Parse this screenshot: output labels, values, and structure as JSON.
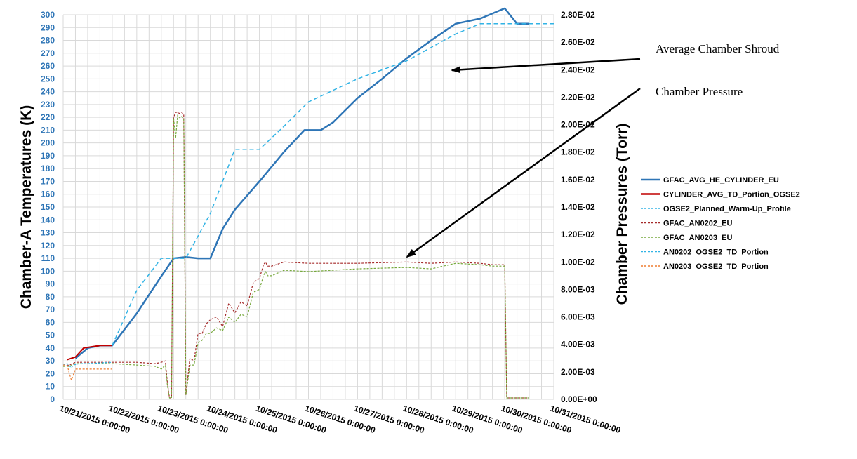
{
  "chart_data": {
    "type": "line",
    "y_left_label": "Chamber-A Temperatures (K)",
    "y_right_label": "Chamber Pressures (Torr)",
    "y_left_range": [
      0,
      300
    ],
    "y_left_ticks": [
      0,
      10,
      20,
      30,
      40,
      50,
      60,
      70,
      80,
      90,
      100,
      110,
      120,
      130,
      140,
      150,
      160,
      170,
      180,
      190,
      200,
      210,
      220,
      230,
      240,
      250,
      260,
      270,
      280,
      290,
      300
    ],
    "y_right_range": [
      0,
      0.028
    ],
    "y_right_ticks": [
      "0.00E+00",
      "2.00E-03",
      "4.00E-03",
      "6.00E-03",
      "8.00E-03",
      "1.00E-02",
      "1.20E-02",
      "1.40E-02",
      "1.60E-02",
      "1.80E-02",
      "2.00E-02",
      "2.20E-02",
      "2.40E-02",
      "2.60E-02",
      "2.80E-02"
    ],
    "x_ticks": [
      "10/21/2015 0:00:00",
      "10/22/2015 0:00:00",
      "10/23/2015 0:00:00",
      "10/24/2015 0:00:00",
      "10/25/2015 0:00:00",
      "10/26/2015 0:00:00",
      "10/27/2015 0:00:00",
      "10/28/2015 0:00:00",
      "10/29/2015 0:00:00",
      "10/30/2015 0:00:00",
      "10/31/2015 0:00:00"
    ],
    "grid": true,
    "legend_position": "right",
    "annotations": [
      {
        "text": "Average Chamber Shroud",
        "points_to": "GFAC_AVG_HE_CYLINDER_EU"
      },
      {
        "text": "Chamber Pressure",
        "points_to": "GFAC_AN0202_EU"
      }
    ],
    "series": [
      {
        "name": "GFAC_AVG_HE_CYLINDER_EU",
        "axis": "left",
        "color": "#2e75b6",
        "style": "solid",
        "width": 2.5,
        "x": [
          "10/21/2015 6:00",
          "10/21/2015 12:00",
          "10/21/2015 18:00",
          "10/22/2015 0:00",
          "10/22/2015 12:00",
          "10/23/2015 0:00",
          "10/23/2015 6:00",
          "10/23/2015 12:00",
          "10/23/2015 18:00",
          "10/24/2015 0:00",
          "10/24/2015 6:00",
          "10/24/2015 12:00",
          "10/25/2015 0:00",
          "10/25/2015 12:00",
          "10/25/2015 22:00",
          "10/26/2015 6:00",
          "10/26/2015 12:00",
          "10/27/2015 0:00",
          "10/27/2015 12:00",
          "10/28/2015 0:00",
          "10/28/2015 12:00",
          "10/29/2015 0:00",
          "10/29/2015 12:00",
          "10/30/2015 0:00",
          "10/30/2015 6:00",
          "10/30/2015 12:00"
        ],
        "y": [
          32,
          40,
          42,
          42,
          67,
          96,
          110,
          111,
          110,
          110,
          133,
          148,
          170,
          193,
          210,
          210,
          216,
          235,
          250,
          266,
          280,
          293,
          297,
          305,
          293,
          293
        ]
      },
      {
        "name": "CYLINDER_AVG_TD_Portion_OGSE2",
        "axis": "left",
        "color": "#c00000",
        "style": "solid",
        "width": 2,
        "x": [
          "10/21/2015 2:00",
          "10/21/2015 6:00",
          "10/21/2015 10:00",
          "10/21/2015 18:00",
          "10/22/2015 0:00"
        ],
        "y": [
          31,
          33,
          40,
          42,
          42
        ]
      },
      {
        "name": "OGSE2_Planned_Warm-Up_Profile",
        "axis": "left",
        "color": "#31b3e5",
        "style": "dashed",
        "width": 1.5,
        "x": [
          "10/22/2015 0:00",
          "10/22/2015 12:00",
          "10/23/2015 0:00",
          "10/23/2015 12:00",
          "10/24/2015 0:00",
          "10/24/2015 12:00",
          "10/25/2015 0:00",
          "10/25/2015 12:00",
          "10/26/2015 0:00",
          "10/27/2015 0:00",
          "10/28/2015 0:00",
          "10/29/2015 0:00",
          "10/29/2015 12:00",
          "10/30/2015 0:00",
          "10/31/2015 0:00"
        ],
        "y": [
          42,
          85,
          110,
          110,
          145,
          195,
          195,
          213,
          232,
          250,
          264,
          285,
          293,
          293,
          293
        ]
      },
      {
        "name": "GFAC_AN0202_EU",
        "axis": "right",
        "color": "#a52a2a",
        "style": "dashed",
        "width": 1.2,
        "x": [
          "10/21/2015 0:00",
          "10/21/2015 3:00",
          "10/21/2015 6:00",
          "10/21/2015 12:00",
          "10/22/2015 0:00",
          "10/22/2015 12:00",
          "10/22/2015 21:00",
          "10/23/2015 0:00",
          "10/23/2015 2:00",
          "10/23/2015 3:00",
          "10/23/2015 4:00",
          "10/23/2015 5:00",
          "10/23/2015 6:00",
          "10/23/2015 7:00",
          "10/23/2015 8:00",
          "10/23/2015 9:00",
          "10/23/2015 10:00",
          "10/23/2015 11:00",
          "10/23/2015 12:00",
          "10/23/2015 14:00",
          "10/23/2015 16:00",
          "10/23/2015 18:00",
          "10/23/2015 20:00",
          "10/23/2015 22:00",
          "10/24/2015 0:00",
          "10/24/2015 3:00",
          "10/24/2015 6:00",
          "10/24/2015 9:00",
          "10/24/2015 12:00",
          "10/24/2015 15:00",
          "10/24/2015 18:00",
          "10/24/2015 21:00",
          "10/25/2015 0:00",
          "10/25/2015 2:00",
          "10/25/2015 3:00",
          "10/25/2015 4:00",
          "10/25/2015 6:00",
          "10/25/2015 12:00",
          "10/26/2015 0:00",
          "10/27/2015 0:00",
          "10/28/2015 0:00",
          "10/28/2015 12:00",
          "10/29/2015 0:00",
          "10/29/2015 12:00",
          "10/29/2015 18:00",
          "10/30/2015 0:00",
          "10/30/2015 1:00",
          "10/30/2015 6:00",
          "10/30/2015 12:00"
        ],
        "y": [
          0.0024,
          0.0025,
          0.0027,
          0.0027,
          0.0027,
          0.0027,
          0.0026,
          0.0027,
          0.0028,
          0.0012,
          0.0001,
          0.0001,
          0.0205,
          0.0209,
          0.0209,
          0.0208,
          0.0209,
          0.0207,
          0.0003,
          0.003,
          0.0028,
          0.0048,
          0.0048,
          0.0055,
          0.0058,
          0.006,
          0.0053,
          0.007,
          0.0063,
          0.0071,
          0.0068,
          0.0085,
          0.0088,
          0.0098,
          0.01,
          0.0097,
          0.0097,
          0.01,
          0.0099,
          0.0099,
          0.01,
          0.0099,
          0.01,
          0.0099,
          0.0098,
          0.0098,
          0.0001,
          0.0001,
          0.0001
        ]
      },
      {
        "name": "GFAC_AN0203_EU",
        "axis": "right",
        "color": "#77a93d",
        "style": "dashed",
        "width": 1.2,
        "x": [
          "10/21/2015 0:00",
          "10/21/2015 3:00",
          "10/21/2015 6:00",
          "10/21/2015 12:00",
          "10/22/2015 0:00",
          "10/22/2015 12:00",
          "10/22/2015 21:00",
          "10/23/2015 0:00",
          "10/23/2015 2:00",
          "10/23/2015 3:00",
          "10/23/2015 4:00",
          "10/23/2015 5:00",
          "10/23/2015 6:00",
          "10/23/2015 7:00",
          "10/23/2015 8:00",
          "10/23/2015 9:00",
          "10/23/2015 10:00",
          "10/23/2015 11:00",
          "10/23/2015 12:00",
          "10/23/2015 14:00",
          "10/23/2015 16:00",
          "10/23/2015 18:00",
          "10/23/2015 20:00",
          "10/23/2015 22:00",
          "10/24/2015 0:00",
          "10/24/2015 3:00",
          "10/24/2015 6:00",
          "10/24/2015 9:00",
          "10/24/2015 12:00",
          "10/24/2015 15:00",
          "10/24/2015 18:00",
          "10/24/2015 21:00",
          "10/25/2015 0:00",
          "10/25/2015 2:00",
          "10/25/2015 3:00",
          "10/25/2015 4:00",
          "10/25/2015 6:00",
          "10/25/2015 12:00",
          "10/26/2015 0:00",
          "10/27/2015 0:00",
          "10/28/2015 0:00",
          "10/28/2015 12:00",
          "10/29/2015 0:00",
          "10/29/2015 12:00",
          "10/29/2015 18:00",
          "10/30/2015 0:00",
          "10/30/2015 1:00",
          "10/30/2015 6:00",
          "10/30/2015 12:00"
        ],
        "y": [
          0.0024,
          0.0024,
          0.0026,
          0.0026,
          0.0026,
          0.0025,
          0.0024,
          0.0022,
          0.0025,
          0.001,
          0.0001,
          0.0001,
          0.0205,
          0.019,
          0.0207,
          0.0205,
          0.0206,
          0.0204,
          0.0003,
          0.0025,
          0.0025,
          0.0041,
          0.0043,
          0.0048,
          0.0048,
          0.0052,
          0.005,
          0.006,
          0.0056,
          0.0062,
          0.006,
          0.0078,
          0.008,
          0.009,
          0.0093,
          0.009,
          0.009,
          0.0094,
          0.0093,
          0.0095,
          0.0096,
          0.0095,
          0.0099,
          0.0098,
          0.0097,
          0.0097,
          0.0001,
          0.0001,
          0.0001
        ]
      },
      {
        "name": "AN0202_OGSE2_TD_Portion",
        "axis": "right",
        "color": "#31b3e5",
        "style": "dashed",
        "width": 1.2,
        "x": [
          "10/21/2015 0:00",
          "10/21/2015 2:00",
          "10/21/2015 4:00",
          "10/21/2015 5:00",
          "10/21/2015 8:00",
          "10/21/2015 12:00",
          "10/22/2015 0:00"
        ],
        "y": [
          0.0025,
          0.0026,
          0.0023,
          0.0025,
          0.0026,
          0.0026,
          0.0027
        ]
      },
      {
        "name": "AN0203_OGSE2_TD_Portion",
        "axis": "right",
        "color": "#ed7d31",
        "style": "dashed",
        "width": 1.2,
        "x": [
          "10/21/2015 0:00",
          "10/21/2015 2:00",
          "10/21/2015 3:00",
          "10/21/2015 4:00",
          "10/21/2015 6:00",
          "10/21/2015 12:00",
          "10/22/2015 0:00"
        ],
        "y": [
          0.0025,
          0.0025,
          0.0019,
          0.0014,
          0.0022,
          0.0022,
          0.0022
        ]
      }
    ]
  }
}
